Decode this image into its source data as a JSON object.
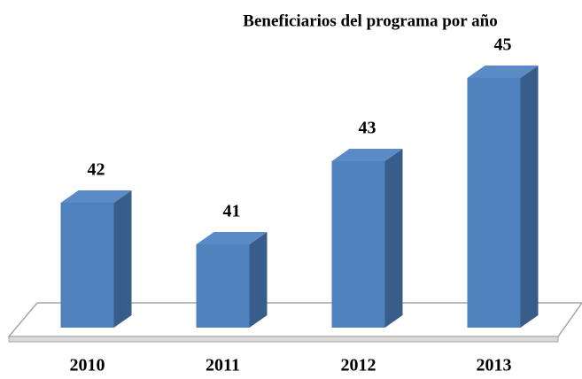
{
  "chart_data": {
    "type": "bar3d",
    "title": "Beneficiarios del programa por año",
    "categories": [
      "2010",
      "2011",
      "2012",
      "2013"
    ],
    "values": [
      42,
      41,
      43,
      45
    ],
    "color": "#4f81bd",
    "ylim": [
      39,
      45
    ]
  }
}
